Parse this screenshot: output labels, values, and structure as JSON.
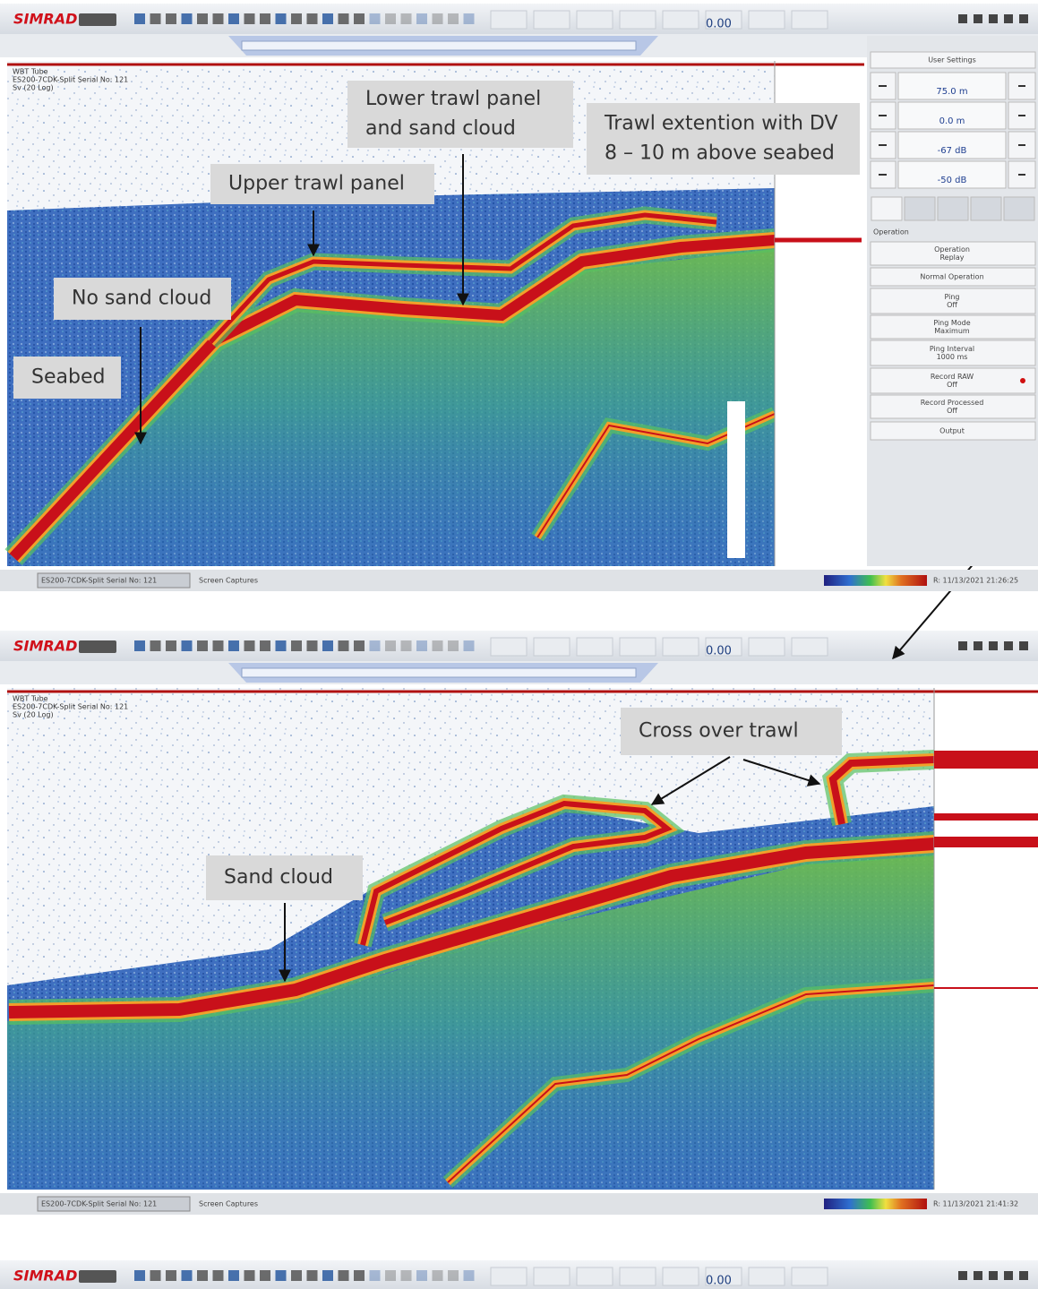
{
  "panels": [
    {
      "toolbar": {
        "brand": "SIMRAD",
        "readout": "0.00"
      },
      "echogram_labels": [
        "WBT Tube",
        "ES200-7CDK-Split Serial No: 121",
        "Sv (20 Log)"
      ],
      "annotations": [
        {
          "lines": [
            "Lower trawl panel",
            "and sand cloud"
          ]
        },
        {
          "lines": [
            "Trawl extention with DV",
            "8 – 10 m above seabed"
          ]
        },
        {
          "lines": [
            "Upper trawl panel"
          ]
        },
        {
          "lines": [
            "No sand cloud"
          ]
        },
        {
          "lines": [
            "Seabed"
          ]
        }
      ],
      "status": {
        "channel": "ES200-7CDK-Split Serial No: 121",
        "tab": "Screen Captures",
        "time": "R: 11/13/2021  21:26:25"
      }
    },
    {
      "toolbar": {
        "brand": "SIMRAD",
        "readout": "0.00"
      },
      "echogram_labels": [
        "WBT Tube",
        "ES200-7CDK-Split Serial No: 121",
        "Sv (20 Log)"
      ],
      "annotations": [
        {
          "lines": [
            "Cross over trawl"
          ]
        },
        {
          "lines": [
            "Sand cloud"
          ]
        }
      ],
      "status": {
        "channel": "ES200-7CDK-Split Serial No: 121",
        "tab": "Screen Captures",
        "time": "R: 11/13/2021  21:41:32"
      }
    },
    {
      "toolbar": {
        "brand": "SIMRAD",
        "readout": "0.00"
      }
    }
  ],
  "side_panel": {
    "header": "User Settings",
    "settings": [
      "75.0 m",
      "0.0 m",
      "-67 dB",
      "-50 dB"
    ],
    "section": "Operation",
    "buttons": [
      [
        "Operation",
        "Replay"
      ],
      [
        "Normal Operation"
      ],
      [
        "Ping",
        "Off"
      ],
      [
        "Ping Mode",
        "Maximum"
      ],
      [
        "Ping Interval",
        "1000 ms"
      ],
      [
        "Record RAW",
        "Off"
      ],
      [
        "Record Processed",
        "Off"
      ],
      [
        "Output"
      ]
    ]
  }
}
